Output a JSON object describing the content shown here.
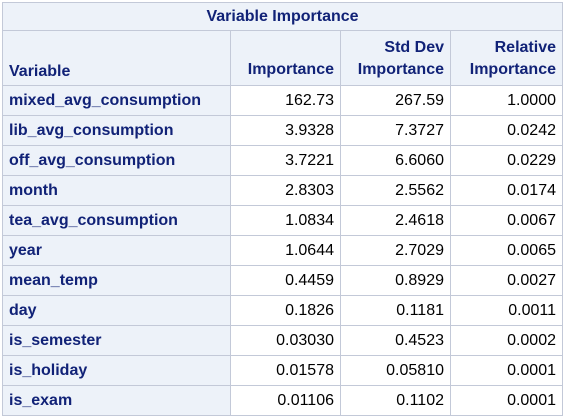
{
  "table": {
    "title": "Variable Importance",
    "headers": {
      "variable": "Variable",
      "importance": "Importance",
      "std_dev_line1": "Std Dev",
      "std_dev_line2": "Importance",
      "relative_line1": "Relative",
      "relative_line2": "Importance"
    },
    "rows": [
      {
        "variable": "mixed_avg_consumption",
        "importance": "162.73",
        "std_dev": "267.59",
        "relative": "1.0000"
      },
      {
        "variable": "lib_avg_consumption",
        "importance": "3.9328",
        "std_dev": "7.3727",
        "relative": "0.0242"
      },
      {
        "variable": "off_avg_consumption",
        "importance": "3.7221",
        "std_dev": "6.6060",
        "relative": "0.0229"
      },
      {
        "variable": "month",
        "importance": "2.8303",
        "std_dev": "2.5562",
        "relative": "0.0174"
      },
      {
        "variable": "tea_avg_consumption",
        "importance": "1.0834",
        "std_dev": "2.4618",
        "relative": "0.0067"
      },
      {
        "variable": "year",
        "importance": "1.0644",
        "std_dev": "2.7029",
        "relative": "0.0065"
      },
      {
        "variable": "mean_temp",
        "importance": "0.4459",
        "std_dev": "0.8929",
        "relative": "0.0027"
      },
      {
        "variable": "day",
        "importance": "0.1826",
        "std_dev": "0.1181",
        "relative": "0.0011"
      },
      {
        "variable": "is_semester",
        "importance": "0.03030",
        "std_dev": "0.4523",
        "relative": "0.0002"
      },
      {
        "variable": "is_holiday",
        "importance": "0.01578",
        "std_dev": "0.05810",
        "relative": "0.0001"
      },
      {
        "variable": "is_exam",
        "importance": "0.01106",
        "std_dev": "0.1102",
        "relative": "0.0001"
      }
    ]
  },
  "colors": {
    "header_bg": "#edf2f9",
    "header_text": "#112277",
    "border": "#c3c9d8",
    "cell_bg": "#ffffff",
    "cell_text": "#000000"
  }
}
